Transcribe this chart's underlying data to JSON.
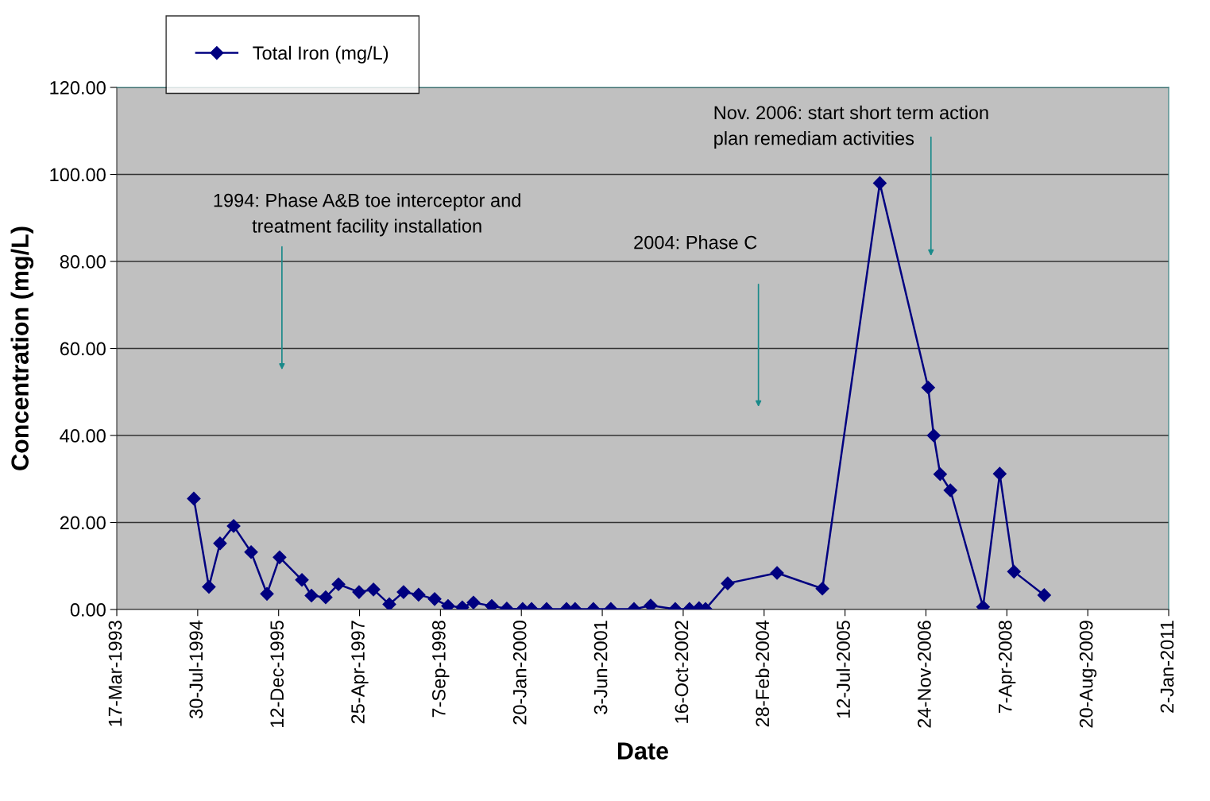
{
  "chart_data": {
    "type": "line",
    "xlabel": "Date",
    "ylabel": "Concentration (mg/L)",
    "series": [
      {
        "name": "Total Iron (mg/L)",
        "color": "#000080",
        "x": [
          "1994-07-06",
          "1994-10-07",
          "1994-12-15",
          "1995-03-09",
          "1995-06-25",
          "1995-10-01",
          "1995-12-18",
          "1996-05-04",
          "1996-07-02",
          "1996-09-28",
          "1996-12-16",
          "1997-04-22",
          "1997-07-20",
          "1997-10-26",
          "1998-01-22",
          "1998-04-25",
          "1998-08-02",
          "1998-10-24",
          "1999-01-20",
          "1999-03-30",
          "1999-07-21",
          "1999-10-22",
          "2000-01-28",
          "2000-03-23",
          "2000-06-24",
          "2000-10-25",
          "2000-12-17",
          "2001-04-09",
          "2001-07-26",
          "2001-12-16",
          "2002-03-29",
          "2002-08-28",
          "2002-11-24",
          "2003-01-22",
          "2003-03-03",
          "2003-07-18",
          "2004-05-18",
          "2005-02-22",
          "2006-02-12",
          "2006-12-08",
          "2007-01-11",
          "2007-02-20",
          "2007-04-24",
          "2007-11-12",
          "2008-02-23",
          "2008-05-21",
          "2008-11-24"
        ],
        "values": [
          25.5,
          5.2,
          15.2,
          19.2,
          13.2,
          3.6,
          12.0,
          6.8,
          3.2,
          2.8,
          5.8,
          4.0,
          4.6,
          1.2,
          4.0,
          3.4,
          2.4,
          0.8,
          0.5,
          1.6,
          0.8,
          0.2,
          0.1,
          0.1,
          0.1,
          0.1,
          0.1,
          0.1,
          0.1,
          0.1,
          0.9,
          0.1,
          0.1,
          0.3,
          0.1,
          6.0,
          8.4,
          4.8,
          98.0,
          51.0,
          40.0,
          31.1,
          27.4,
          0.6,
          31.2,
          8.7,
          3.3
        ]
      }
    ],
    "xlim": [
      "1993-03-17",
      "2011-01-02"
    ],
    "xticks": [
      {
        "value": "1993-03-17",
        "label": "17-Mar-1993"
      },
      {
        "value": "1994-07-30",
        "label": "30-Jul-1994"
      },
      {
        "value": "1995-12-12",
        "label": "12-Dec-1995"
      },
      {
        "value": "1997-04-25",
        "label": "25-Apr-1997"
      },
      {
        "value": "1998-09-07",
        "label": "7-Sep-1998"
      },
      {
        "value": "2000-01-20",
        "label": "20-Jan-2000"
      },
      {
        "value": "2001-06-03",
        "label": "3-Jun-2001"
      },
      {
        "value": "2002-10-16",
        "label": "16-Oct-2002"
      },
      {
        "value": "2004-02-28",
        "label": "28-Feb-2004"
      },
      {
        "value": "2005-07-12",
        "label": "12-Jul-2005"
      },
      {
        "value": "2006-11-24",
        "label": "24-Nov-2006"
      },
      {
        "value": "2008-04-07",
        "label": "7-Apr-2008"
      },
      {
        "value": "2009-08-20",
        "label": "20-Aug-2009"
      },
      {
        "value": "2011-01-02",
        "label": "2-Jan-2011"
      }
    ],
    "ylim": [
      0,
      120
    ],
    "yticks": [
      {
        "value": 0,
        "label": "0.00"
      },
      {
        "value": 20,
        "label": "20.00"
      },
      {
        "value": 40,
        "label": "40.00"
      },
      {
        "value": 60,
        "label": "60.00"
      },
      {
        "value": 80,
        "label": "80.00"
      },
      {
        "value": 100,
        "label": "100.00"
      },
      {
        "value": 120,
        "label": "120.00"
      }
    ],
    "grid": "y",
    "legend": "top left",
    "marker": "diamond",
    "line_style": "solid",
    "annotations": [
      "1994: Phase A&B toe interceptor and\ntreatment facility installation",
      "2004: Phase C",
      "Nov. 2006: start short term action\nplan remediam activities"
    ]
  }
}
